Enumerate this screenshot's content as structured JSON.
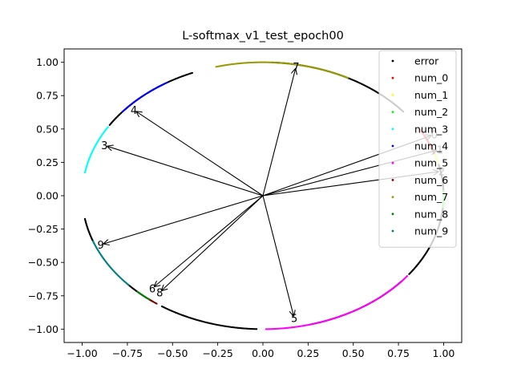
{
  "chart_data": {
    "type": "scatter",
    "title": "L-softmax_v1_test_epoch00",
    "xlabel": "",
    "ylabel": "",
    "xlim": [
      -1.1,
      1.1
    ],
    "ylim": [
      -1.1,
      1.1
    ],
    "xticks": [
      -1.0,
      -0.75,
      -0.5,
      -0.25,
      0.0,
      0.25,
      0.5,
      0.75,
      1.0
    ],
    "yticks": [
      -1.0,
      -0.75,
      -0.5,
      -0.25,
      0.0,
      0.25,
      0.5,
      0.75,
      1.0
    ],
    "xtick_labels": [
      "−1.00",
      "−0.75",
      "−0.50",
      "−0.25",
      "0.00",
      "0.25",
      "0.50",
      "0.75",
      "1.00"
    ],
    "ytick_labels": [
      "−1.00",
      "−0.75",
      "−0.50",
      "−0.25",
      "0.00",
      "0.25",
      "0.50",
      "0.75",
      "1.00"
    ],
    "grid": false,
    "legend_placement": "top-right",
    "series": [
      {
        "name": "error",
        "color": "#000000",
        "arcs_deg": [
          [
            113,
            148
          ],
          [
            190,
            200
          ],
          [
            222,
            232
          ],
          [
            236,
            268
          ],
          [
            -75,
            -40
          ],
          [
            -36,
            25
          ],
          [
            39,
            87
          ]
        ]
      },
      {
        "name": "num_0",
        "color": "#ff0000",
        "arcs_deg": [
          [
            18,
            30
          ]
        ]
      },
      {
        "name": "num_1",
        "color": "#ffff00",
        "arcs_deg": [
          [
            14,
            18
          ]
        ]
      },
      {
        "name": "num_2",
        "color": "#00ff00",
        "arcs_deg": [
          [
            -5,
            2
          ]
        ]
      },
      {
        "name": "num_3",
        "color": "#00ffff",
        "arcs_deg": [
          [
            149,
            170
          ]
        ]
      },
      {
        "name": "num_4",
        "color": "#0000ff",
        "arcs_deg": [
          [
            122,
            141
          ]
        ]
      },
      {
        "name": "num_5",
        "color": "#ff00ff",
        "arcs_deg": [
          [
            -89,
            -37
          ]
        ]
      },
      {
        "name": "num_6",
        "color": "#800000",
        "arcs_deg": [
          [
            231,
            234
          ]
        ]
      },
      {
        "name": "num_7",
        "color": "#999900",
        "arcs_deg": [
          [
            62,
            105
          ]
        ]
      },
      {
        "name": "num_8",
        "color": "#008000",
        "arcs_deg": [
          [
            226,
            231
          ]
        ]
      },
      {
        "name": "num_9",
        "color": "#008080",
        "arcs_deg": [
          [
            200,
            222
          ]
        ]
      }
    ],
    "class_vectors": [
      {
        "label": "7",
        "x": 0.18,
        "y": 0.95
      },
      {
        "label": "4",
        "x": -0.7,
        "y": 0.63
      },
      {
        "label": "3",
        "x": -0.86,
        "y": 0.37
      },
      {
        "label": "9",
        "x": -0.88,
        "y": -0.36
      },
      {
        "label": "6",
        "x": -0.6,
        "y": -0.68
      },
      {
        "label": "8",
        "x": -0.56,
        "y": -0.71
      },
      {
        "label": "5",
        "x": 0.17,
        "y": -0.9
      },
      {
        "label": "0",
        "x": 0.93,
        "y": 0.45
      },
      {
        "label": "1",
        "x": 0.96,
        "y": 0.34
      },
      {
        "label": "2",
        "x": 0.97,
        "y": 0.18
      }
    ]
  }
}
